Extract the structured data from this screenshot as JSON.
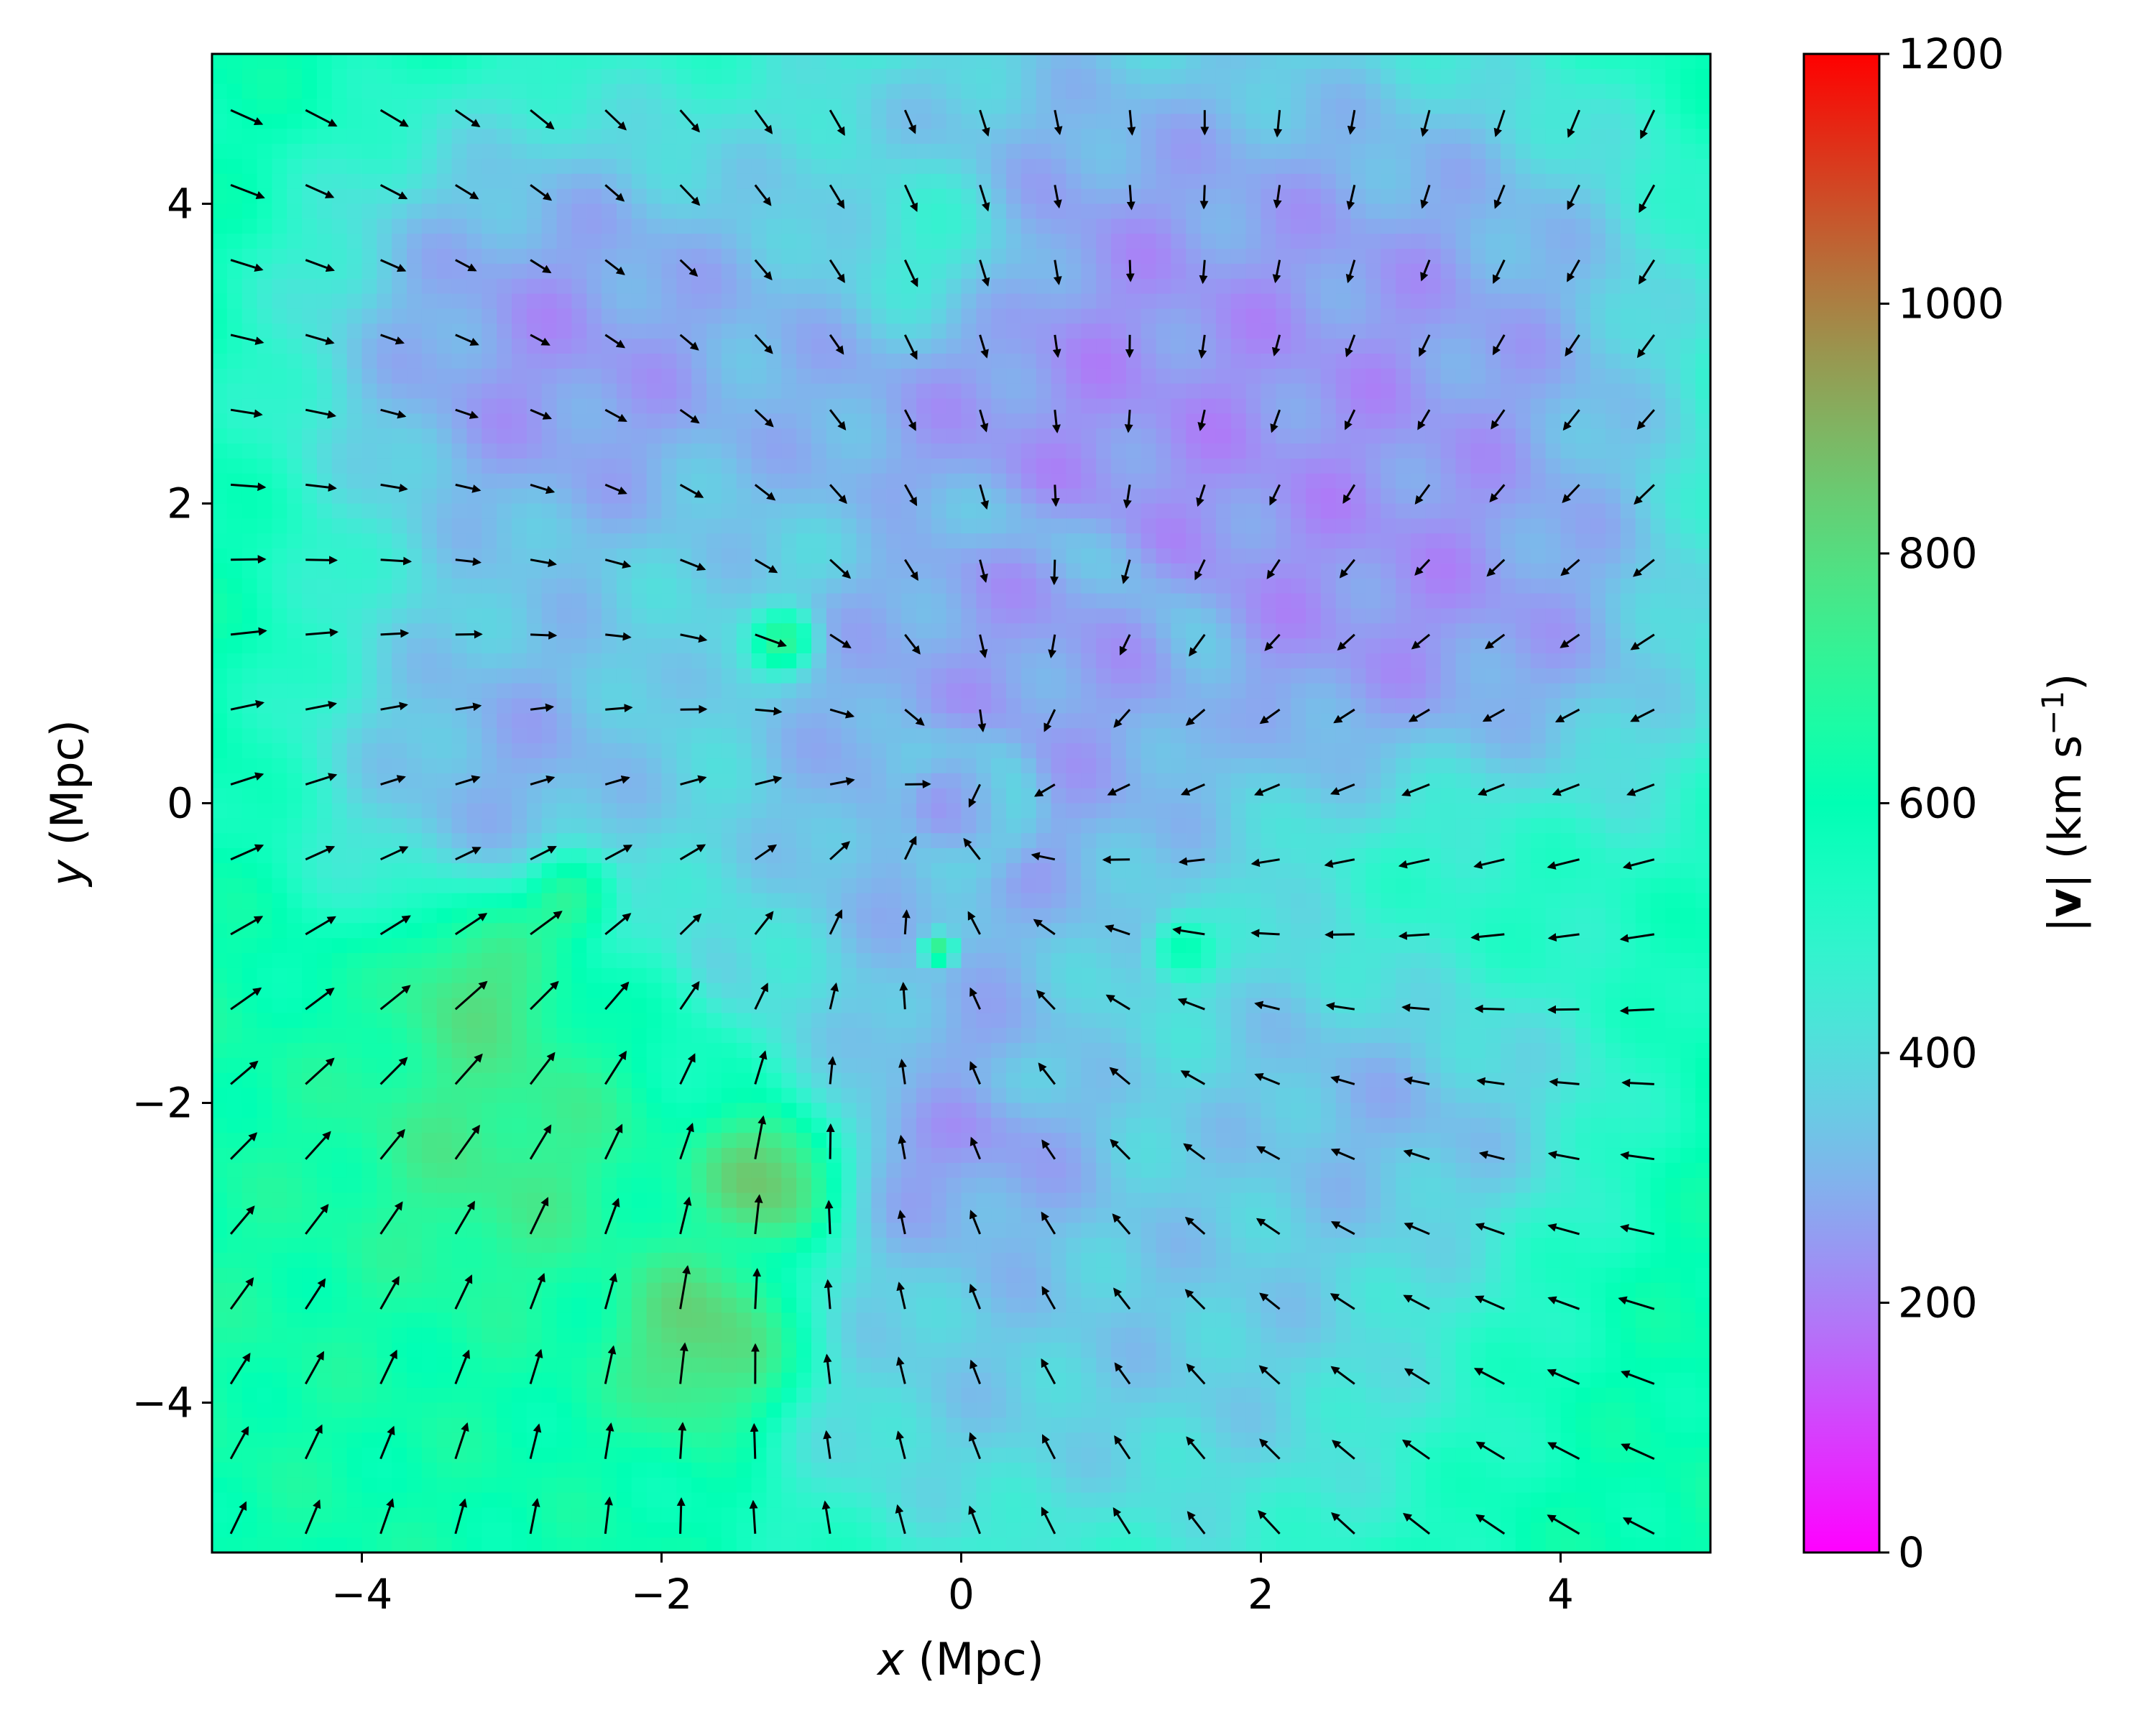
{
  "chart_data": {
    "type": "heatmap",
    "title": "",
    "x_axis": {
      "label_var": "x",
      "label_unit": " (Mpc)",
      "range": [
        -5,
        5
      ],
      "ticks": [
        -4,
        -2,
        0,
        2,
        4
      ],
      "tick_labels": [
        "−4",
        "−2",
        "0",
        "2",
        "4"
      ]
    },
    "y_axis": {
      "label_var": "y",
      "label_unit": " (Mpc)",
      "range": [
        -5,
        5
      ],
      "ticks": [
        -4,
        -2,
        0,
        2,
        4
      ],
      "tick_labels": [
        "−4",
        "−2",
        "0",
        "2",
        "4"
      ]
    },
    "colorbar": {
      "label_bold": "v",
      "label_units": " (km s",
      "label_exp": "−1",
      "range": [
        0,
        1200
      ],
      "ticks": [
        0,
        200,
        400,
        600,
        800,
        1000,
        1200
      ],
      "tick_labels": [
        "0",
        "200",
        "400",
        "600",
        "800",
        "1000",
        "1200"
      ],
      "colormap": "rainbow",
      "placement": "right"
    },
    "field": {
      "background_speed": 620,
      "features": [
        {
          "kind": "ring",
          "center": [
            0.0,
            0.0
          ],
          "radius": 0.4,
          "width": 0.15,
          "speed": 450
        },
        {
          "kind": "ring",
          "center": [
            0.0,
            0.0
          ],
          "radius": 1.9,
          "width": 0.2,
          "speed": 380
        },
        {
          "kind": "blob",
          "center": [
            0.0,
            0.0
          ],
          "radius": 1.7,
          "speed": 180
        },
        {
          "kind": "blob",
          "center": [
            1.0,
            2.8
          ],
          "radius": 2.8,
          "speed": 110
        },
        {
          "kind": "blob",
          "center": [
            3.2,
            3.2
          ],
          "radius": 1.6,
          "speed": 200
        },
        {
          "kind": "blob",
          "center": [
            -2.8,
            3.0
          ],
          "radius": 1.6,
          "speed": 130
        },
        {
          "kind": "blob",
          "center": [
            3.2,
            1.0
          ],
          "radius": 1.8,
          "speed": 140
        },
        {
          "kind": "blob",
          "center": [
            -3.0,
            0.3
          ],
          "radius": 1.3,
          "speed": 190
        },
        {
          "kind": "blob",
          "center": [
            3.0,
            -1.6
          ],
          "radius": 1.3,
          "speed": 150
        },
        {
          "kind": "blob",
          "center": [
            1.5,
            -3.3
          ],
          "radius": 1.9,
          "speed": 260
        },
        {
          "kind": "blob",
          "center": [
            -0.2,
            -3.8
          ],
          "radius": 1.2,
          "speed": 300
        },
        {
          "kind": "blob",
          "center": [
            0.0,
            -2.2
          ],
          "radius": 1.0,
          "speed": 120
        },
        {
          "kind": "blob",
          "center": [
            -0.2,
            3.7
          ],
          "radius": 0.6,
          "speed": 600
        },
        {
          "kind": "blob",
          "center": [
            -4.8,
            -3.0
          ],
          "radius": 1.6,
          "speed": 650
        },
        {
          "kind": "blob",
          "center": [
            -3.2,
            -1.1
          ],
          "radius": 0.6,
          "speed": 900
        },
        {
          "kind": "blob",
          "center": [
            -2.6,
            -0.6
          ],
          "radius": 0.3,
          "speed": 960
        },
        {
          "kind": "blob",
          "center": [
            -3.2,
            -2.3
          ],
          "radius": 0.9,
          "speed": 800
        },
        {
          "kind": "blob",
          "center": [
            -1.2,
            -2.5
          ],
          "radius": 0.45,
          "speed": 1050
        },
        {
          "kind": "blob",
          "center": [
            -1.6,
            -3.6
          ],
          "radius": 0.6,
          "speed": 950
        },
        {
          "kind": "blob",
          "center": [
            -1.2,
            1.1
          ],
          "radius": 0.22,
          "speed": 1000
        },
        {
          "kind": "blob",
          "center": [
            1.5,
            -1.0
          ],
          "radius": 0.22,
          "speed": 950
        },
        {
          "kind": "blob",
          "center": [
            -0.15,
            -0.98
          ],
          "radius": 0.11,
          "speed": 1200
        },
        {
          "kind": "blob",
          "center": [
            3.3,
            -0.7
          ],
          "radius": 1.2,
          "speed": 700
        }
      ]
    },
    "vectors": {
      "grid_spacing": 0.25,
      "attractor": [
        0.0,
        0.0
      ],
      "inflow_strength": 1.0,
      "swirl_strength": 0.35
    }
  }
}
